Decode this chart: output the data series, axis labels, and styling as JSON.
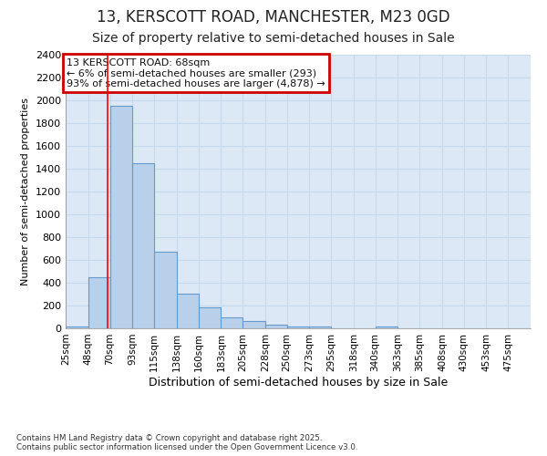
{
  "title1": "13, KERSCOTT ROAD, MANCHESTER, M23 0GD",
  "title2": "Size of property relative to semi-detached houses in Sale",
  "xlabel": "Distribution of semi-detached houses by size in Sale",
  "ylabel": "Number of semi-detached properties",
  "bin_edges": [
    25,
    48,
    70,
    93,
    115,
    138,
    160,
    183,
    205,
    228,
    250,
    273,
    295,
    318,
    340,
    363,
    385,
    408,
    430,
    453,
    475,
    498
  ],
  "bin_labels": [
    "25sqm",
    "48sqm",
    "70sqm",
    "93sqm",
    "115sqm",
    "138sqm",
    "160sqm",
    "183sqm",
    "205sqm",
    "228sqm",
    "250sqm",
    "273sqm",
    "295sqm",
    "318sqm",
    "340sqm",
    "363sqm",
    "385sqm",
    "408sqm",
    "430sqm",
    "453sqm",
    "475sqm"
  ],
  "bar_heights": [
    20,
    450,
    1950,
    1450,
    670,
    305,
    185,
    95,
    65,
    35,
    20,
    15,
    0,
    0,
    15,
    0,
    0,
    0,
    0,
    0,
    0
  ],
  "bar_color": "#b8d0ea",
  "bar_edge_color": "#6699cc",
  "red_line_x": 68,
  "ylim": [
    0,
    2400
  ],
  "yticks": [
    0,
    200,
    400,
    600,
    800,
    1000,
    1200,
    1400,
    1600,
    1800,
    2000,
    2200,
    2400
  ],
  "annotation_title": "13 KERSCOTT ROAD: 68sqm",
  "annotation_line1": "← 6% of semi-detached houses are smaller (293)",
  "annotation_line2": "93% of semi-detached houses are larger (4,878) →",
  "annotation_box_color": "#ffffff",
  "annotation_box_edge": "#cc0000",
  "grid_color": "#c8d8ec",
  "plot_bg_color": "#dce8f5",
  "fig_bg_color": "#ffffff",
  "footer_line1": "Contains HM Land Registry data © Crown copyright and database right 2025.",
  "footer_line2": "Contains public sector information licensed under the Open Government Licence v3.0.",
  "title1_fontsize": 12,
  "title2_fontsize": 10,
  "ylabel_fontsize": 8,
  "xlabel_fontsize": 9,
  "tick_fontsize": 8,
  "xtick_fontsize": 7.5,
  "ann_fontsize": 8
}
